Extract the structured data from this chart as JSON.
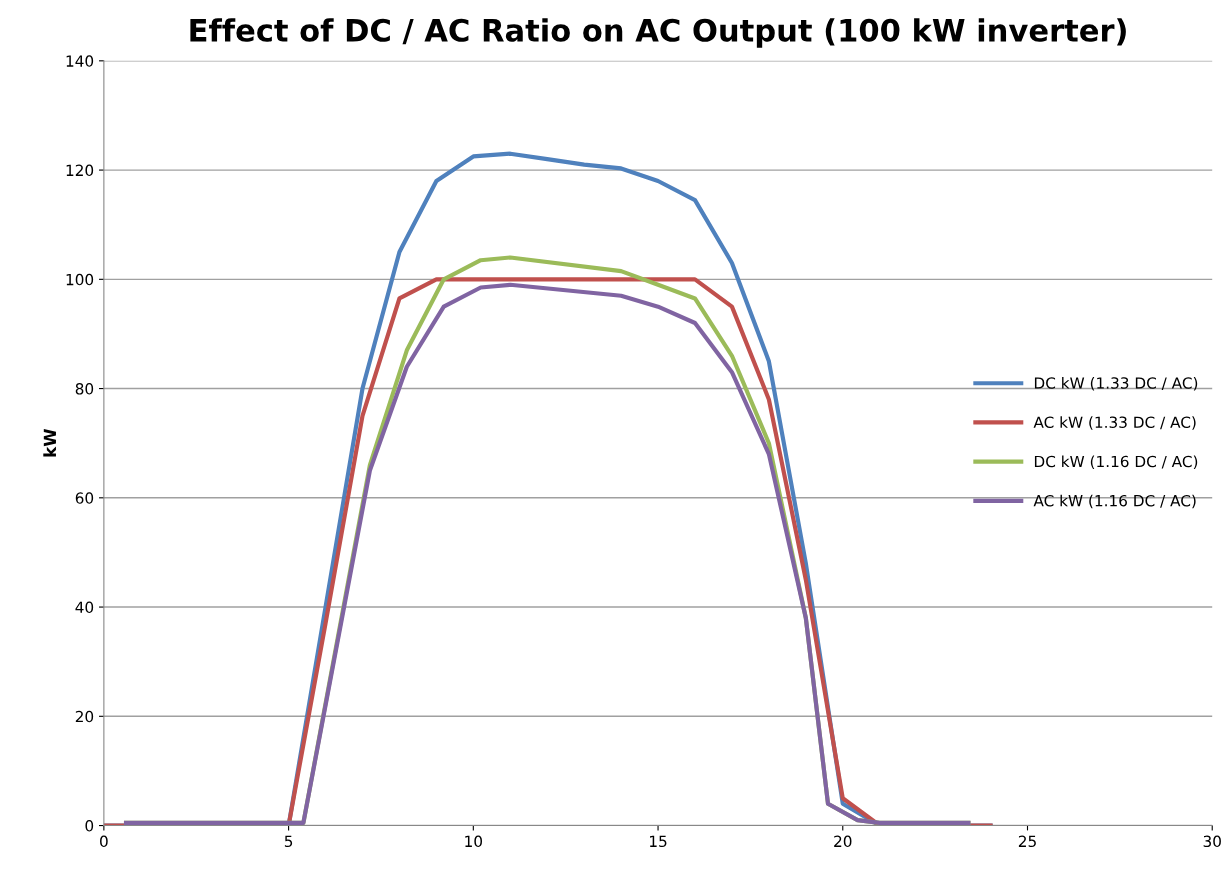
{
  "chart_data": {
    "type": "line",
    "title": "Effect of DC / AC Ratio on AC Output (100 kW inverter)",
    "ylabel": "kW",
    "xlim": [
      0,
      30
    ],
    "xticks": [
      0,
      5,
      10,
      15,
      20,
      25,
      30
    ],
    "ylim": [
      0,
      140
    ],
    "yticks": [
      0,
      20,
      40,
      60,
      80,
      100,
      120,
      140
    ],
    "grid": "y",
    "legend": "right",
    "marker": "none",
    "line_style": "solid",
    "series": [
      {
        "name": "DC kW (1.33 DC / AC)",
        "color": "#4f81bd",
        "x": [
          0,
          5,
          6,
          7,
          8,
          9,
          10,
          11,
          12,
          13,
          14,
          15,
          16,
          17,
          18,
          19,
          20,
          21,
          24
        ],
        "values": [
          0,
          0,
          40,
          80,
          105,
          118,
          122.5,
          123,
          122,
          121,
          120.3,
          118,
          114.5,
          103,
          85,
          48,
          4,
          0,
          0
        ]
      },
      {
        "name": "AC kW (1.33 DC / AC)",
        "color": "#c0504d",
        "x": [
          0,
          5,
          6,
          7,
          8,
          9,
          10,
          11,
          12,
          13,
          14,
          15,
          16,
          17,
          18,
          19,
          20,
          21,
          24
        ],
        "values": [
          0,
          0,
          37,
          75,
          96.5,
          100,
          100,
          100,
          100,
          100,
          100,
          100,
          100,
          95,
          78,
          45,
          5,
          0,
          0
        ]
      },
      {
        "name": "DC kW (1.16 DC / AC)",
        "color": "#9bbb59",
        "x": [
          0.6,
          5.4,
          7.2,
          8.2,
          9.2,
          10.2,
          11,
          14,
          15,
          16,
          17,
          18,
          19,
          19.6,
          20.4,
          21,
          23.4
        ],
        "values": [
          0.5,
          0.5,
          66,
          87,
          100,
          103.5,
          104,
          101.5,
          99,
          96.5,
          86,
          70,
          38,
          4,
          1,
          0.5,
          0.5
        ]
      },
      {
        "name": "AC kW (1.16 DC / AC)",
        "color": "#8064a2",
        "x": [
          0.6,
          5.4,
          7.2,
          8.2,
          9.2,
          10.2,
          11,
          14,
          15,
          16,
          17,
          18,
          19,
          19.6,
          20.4,
          21,
          23.4
        ],
        "values": [
          0.5,
          0.5,
          65,
          84,
          95,
          98.5,
          99,
          97,
          95,
          92,
          83,
          68,
          38,
          4,
          1,
          0.5,
          0.5
        ]
      }
    ]
  }
}
